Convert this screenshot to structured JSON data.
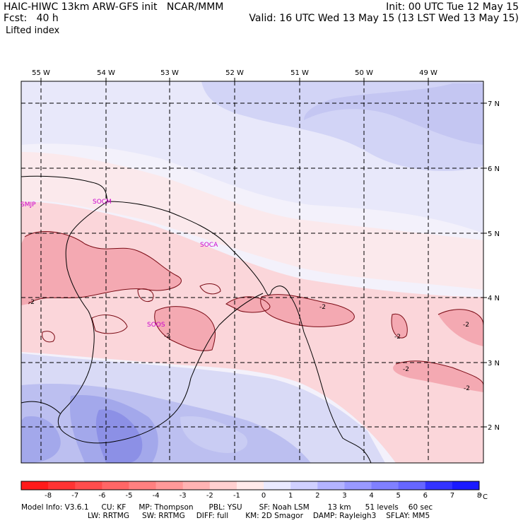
{
  "header": {
    "line1_left": "HAIC-HIWC 13km ARW-GFS init   NCAR/MMM",
    "line2_left": "Fcst:   40 h",
    "line1_right": "Init: 00 UTC Tue 12 May 15",
    "line2_right": "Valid: 16 UTC Wed 13 May 15 (13 LST Wed 13 May 15)",
    "field": "Lifted index"
  },
  "map": {
    "lon_labels": [
      "55 W",
      "54 W",
      "53 W",
      "52 W",
      "51 W",
      "50 W",
      "49 W"
    ],
    "lat_labels": [
      "7 N",
      "6 N",
      "5 N",
      "4 N",
      "3 N",
      "2 N"
    ],
    "stations": [
      {
        "name": "SMJP"
      },
      {
        "name": "SOCM"
      },
      {
        "name": "SOCA"
      },
      {
        "name": "SOOS"
      }
    ],
    "contour_labels": [
      "-2",
      "-2",
      "-2",
      "-2",
      "-2",
      "-2",
      "-2"
    ]
  },
  "colorbar": {
    "labels": [
      "-8",
      "-7",
      "-6",
      "-5",
      "-4",
      "-3",
      "-2",
      "-1",
      "0",
      "1",
      "2",
      "3",
      "4",
      "5",
      "6",
      "7",
      "8"
    ],
    "unit": "°C",
    "colors": [
      "#ff1a1a",
      "#ff3333",
      "#ff4d4d",
      "#ff6666",
      "#ff8080",
      "#ff9999",
      "#ffb3b3",
      "#ffd0d0",
      "#ffeaea",
      "#eaeaff",
      "#d0d0ff",
      "#b3b3ff",
      "#9999ff",
      "#8080ff",
      "#6666ff",
      "#3333ff",
      "#1a1aff"
    ]
  },
  "footer": {
    "line1": [
      "Model Info: V3.6.1",
      "CU: KF",
      "MP: Thompson",
      "PBL: YSU",
      "SF: Noah LSM",
      "13 km",
      "51 levels",
      "60 sec"
    ],
    "line2": [
      "LW: RRTMG",
      "SW: RRTMG",
      "DIFF: full",
      "KM: 2D Smagor",
      "DAMP: Rayleigh3",
      "SFLAY: MM5"
    ]
  },
  "colors": {
    "station_label": "#cc00cc",
    "coast": "#000000",
    "grid": "#000000"
  }
}
